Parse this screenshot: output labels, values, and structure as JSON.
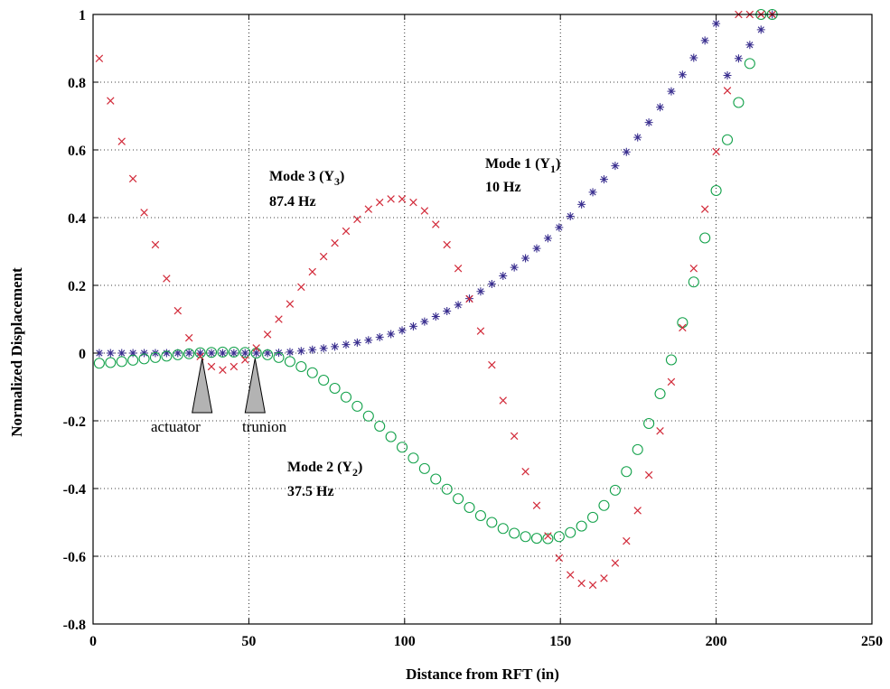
{
  "chart_data": {
    "type": "scatter",
    "xlabel": "Distance from RFT (in)",
    "ylabel": "Normalized Displacement",
    "xlim": [
      0,
      250
    ],
    "ylim": [
      -0.8,
      1
    ],
    "x_ticks": [
      0,
      50,
      100,
      150,
      200,
      250
    ],
    "y_ticks": [
      -0.8,
      -0.6,
      -0.4,
      -0.2,
      0,
      0.2,
      0.4,
      0.6,
      0.8,
      1
    ],
    "x_tick_labels": [
      "0",
      "50",
      "100",
      "150",
      "200",
      "250"
    ],
    "y_tick_labels": [
      "-0.8",
      "-0.6",
      "-0.4",
      "-0.2",
      "0",
      "0.2",
      "0.4",
      "0.6",
      "0.8",
      "1"
    ],
    "grid": true,
    "series": [
      {
        "marker": "asterisk",
        "color": "#3a2f8f",
        "x": [
          2,
          5.6,
          9.2,
          12.8,
          16.4,
          20,
          23.6,
          27.2,
          30.8,
          34.4,
          38,
          41.6,
          45.2,
          48.8,
          52.4,
          56,
          59.6,
          63.2,
          66.8,
          70.4,
          74,
          77.6,
          81.2,
          84.8,
          88.4,
          92,
          95.6,
          99.2,
          102.8,
          106.4,
          110,
          113.6,
          117.2,
          120.8,
          124.4,
          128,
          131.6,
          135.2,
          138.8,
          142.4,
          146,
          149.6,
          153.2,
          156.8,
          160.4,
          164,
          167.6,
          171.2,
          174.8,
          178.4,
          182,
          185.6,
          189.2,
          192.8,
          196.4,
          200,
          203.6,
          207.2,
          210.8,
          214.4,
          218
        ],
        "y": [
          0,
          0,
          0,
          0,
          0,
          0,
          0,
          0,
          0,
          0,
          0,
          0,
          0,
          0,
          0,
          0,
          0.001,
          0.003,
          0.006,
          0.01,
          0.014,
          0.019,
          0.025,
          0.031,
          0.038,
          0.047,
          0.056,
          0.067,
          0.079,
          0.093,
          0.108,
          0.124,
          0.142,
          0.161,
          0.182,
          0.204,
          0.228,
          0.253,
          0.28,
          0.309,
          0.339,
          0.371,
          0.404,
          0.439,
          0.475,
          0.513,
          0.553,
          0.594,
          0.637,
          0.681,
          0.726,
          0.773,
          0.822,
          0.872,
          0.923,
          0.973,
          0.82,
          0.87,
          0.91,
          0.955,
          1.0
        ]
      },
      {
        "marker": "circle",
        "color": "#12a14a",
        "x": [
          2,
          5.6,
          9.2,
          12.8,
          16.4,
          20,
          23.6,
          27.2,
          30.8,
          34.4,
          38,
          41.6,
          45.2,
          48.8,
          52.4,
          56,
          59.6,
          63.2,
          66.8,
          70.4,
          74,
          77.6,
          81.2,
          84.8,
          88.4,
          92,
          95.6,
          99.2,
          102.8,
          106.4,
          110,
          113.6,
          117.2,
          120.8,
          124.4,
          128,
          131.6,
          135.2,
          138.8,
          142.4,
          146,
          149.6,
          153.2,
          156.8,
          160.4,
          164,
          167.6,
          171.2,
          174.8,
          178.4,
          182,
          185.6,
          189.2,
          192.8,
          196.4,
          200,
          203.6,
          207.2,
          210.8,
          214.4,
          218
        ],
        "y": [
          -0.03,
          -0.028,
          -0.025,
          -0.021,
          -0.017,
          -0.013,
          -0.009,
          -0.005,
          -0.002,
          0.001,
          0.002,
          0.003,
          0.003,
          0.002,
          0.0,
          -0.005,
          -0.013,
          -0.025,
          -0.04,
          -0.058,
          -0.08,
          -0.104,
          -0.13,
          -0.157,
          -0.186,
          -0.216,
          -0.247,
          -0.278,
          -0.31,
          -0.341,
          -0.372,
          -0.402,
          -0.43,
          -0.456,
          -0.48,
          -0.5,
          -0.518,
          -0.532,
          -0.542,
          -0.547,
          -0.548,
          -0.542,
          -0.53,
          -0.511,
          -0.485,
          -0.45,
          -0.405,
          -0.35,
          -0.285,
          -0.208,
          -0.12,
          -0.02,
          0.09,
          0.21,
          0.34,
          0.48,
          0.63,
          0.74,
          0.855,
          1.0,
          1.0
        ],
        "note": "sampled"
      },
      {
        "marker": "x",
        "color": "#d22b3a",
        "x": [
          2,
          5.6,
          9.2,
          12.8,
          16.4,
          20,
          23.6,
          27.2,
          30.8,
          34.4,
          38,
          41.6,
          45.2,
          48.8,
          52.4,
          56,
          59.6,
          63.2,
          66.8,
          70.4,
          74,
          77.6,
          81.2,
          84.8,
          88.4,
          92,
          95.6,
          99.2,
          102.8,
          106.4,
          110,
          113.6,
          117.2,
          120.8,
          124.4,
          128,
          131.6,
          135.2,
          138.8,
          142.4,
          146,
          149.6,
          153.2,
          156.8,
          160.4,
          164,
          167.6,
          171.2,
          174.8,
          178.4,
          182,
          185.6,
          189.2,
          192.8,
          196.4,
          200,
          203.6,
          207.2,
          210.8,
          214.4,
          218
        ],
        "y": [
          0.87,
          0.745,
          0.625,
          0.515,
          0.415,
          0.32,
          0.22,
          0.125,
          0.045,
          -0.01,
          -0.04,
          -0.05,
          -0.04,
          -0.02,
          0.015,
          0.055,
          0.1,
          0.145,
          0.195,
          0.24,
          0.285,
          0.325,
          0.36,
          0.395,
          0.425,
          0.445,
          0.455,
          0.455,
          0.445,
          0.42,
          0.38,
          0.32,
          0.25,
          0.16,
          0.065,
          -0.035,
          -0.14,
          -0.245,
          -0.35,
          -0.45,
          -0.54,
          -0.605,
          -0.655,
          -0.68,
          -0.685,
          -0.665,
          -0.62,
          -0.555,
          -0.465,
          -0.36,
          -0.23,
          -0.085,
          0.075,
          0.25,
          0.425,
          0.595,
          0.775,
          1.0,
          1.0,
          1.0,
          1.0
        ]
      }
    ],
    "annotations": [
      {
        "lines": [
          "Mode 3 (Y",
          "3",
          ")"
        ],
        "freq": "87.4 Hz"
      },
      {
        "lines": [
          "Mode 1 (Y",
          "1",
          ")"
        ],
        "freq": "10 Hz"
      },
      {
        "lines": [
          "Mode 2 (Y",
          "2",
          ")"
        ],
        "freq": "37.5 Hz"
      }
    ],
    "markers": [
      {
        "label": "actuator",
        "x": 35
      },
      {
        "label": "trunion",
        "x": 52
      }
    ]
  }
}
